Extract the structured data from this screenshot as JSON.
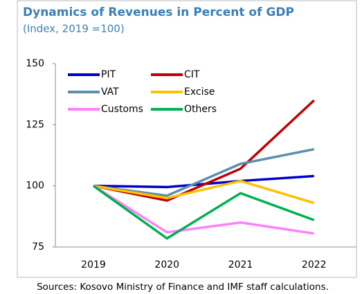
{
  "chart_data": {
    "type": "line",
    "title": "Dynamics of Revenues in Percent of GDP",
    "subtitle": "(Index, 2019 =100)",
    "note": "Sources: Kosovo Ministry of Finance and IMF staff calculations.",
    "categories": [
      "2019",
      "2020",
      "2021",
      "2022"
    ],
    "series": [
      {
        "name": "PIT",
        "color": "#0000cc",
        "values": [
          100,
          99.5,
          102,
          104
        ]
      },
      {
        "name": "CIT",
        "color": "#c00000",
        "values": [
          100,
          94,
          107,
          135
        ]
      },
      {
        "name": "VAT",
        "color": "#5a8fb0",
        "values": [
          100,
          96,
          109,
          115
        ]
      },
      {
        "name": "Excise",
        "color": "#ffc000",
        "values": [
          100,
          95,
          102,
          93
        ]
      },
      {
        "name": "Customs",
        "color": "#ff80ff",
        "values": [
          100,
          81,
          85,
          80.5
        ]
      },
      {
        "name": "Others",
        "color": "#00b050",
        "values": [
          100,
          78.5,
          97,
          86
        ]
      }
    ],
    "ylim": [
      75,
      150
    ],
    "yticks": [
      75,
      100,
      125,
      150
    ],
    "grid": false,
    "legend": "upper left"
  }
}
